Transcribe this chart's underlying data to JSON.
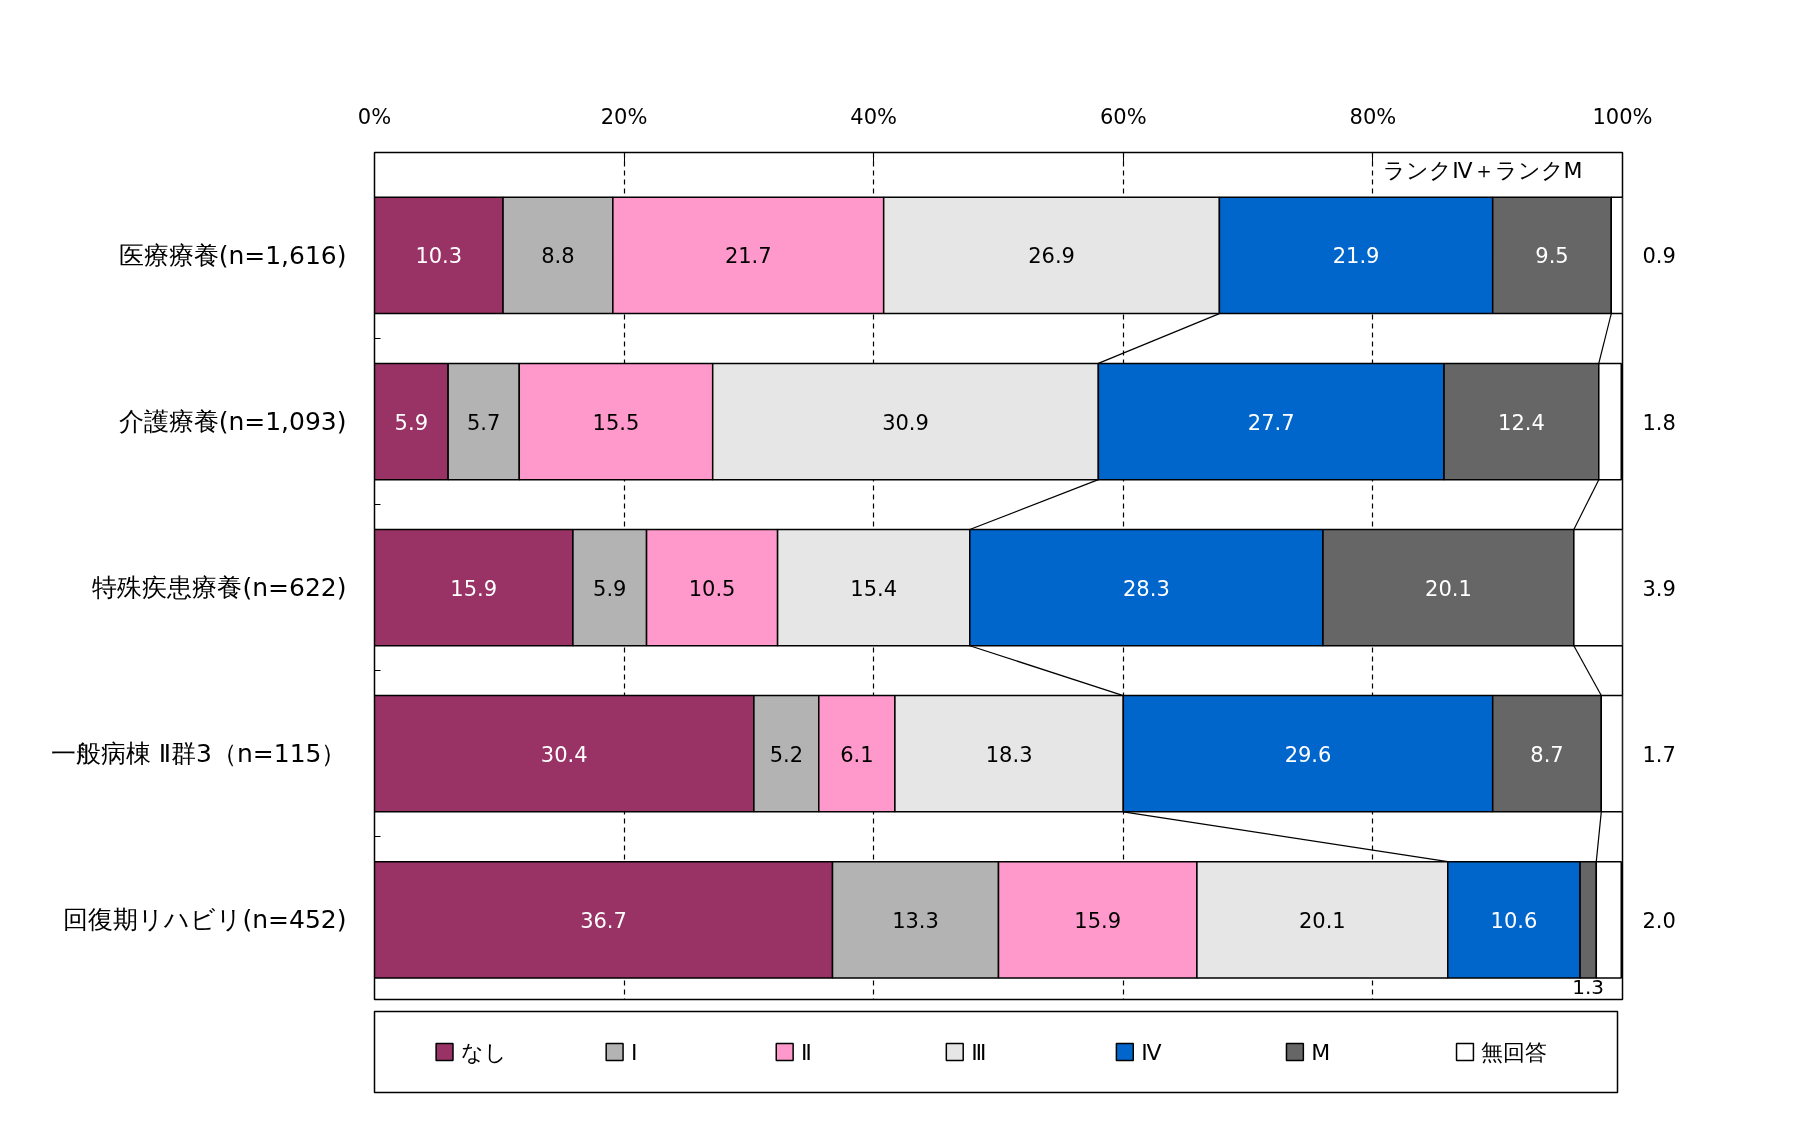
{
  "chart_data": {
    "type": "bar",
    "orientation": "horizontal",
    "stacked": true,
    "categories": [
      "医療療養(n=1,616)",
      "介護療養(n=1,093)",
      "特殊疾患療養(n=622)",
      "一般病棟 Ⅱ群3（n=115）",
      "回復期リハビリ(n=452)"
    ],
    "series": [
      {
        "name": "なし",
        "color": "#993366",
        "values": [
          10.3,
          5.9,
          15.9,
          30.4,
          36.7
        ],
        "value_labels": [
          "10.3",
          "5.9",
          "15.9",
          "30.4",
          "36.7"
        ]
      },
      {
        "name": "Ⅰ",
        "color": "#b3b3b3",
        "values": [
          8.8,
          5.7,
          5.9,
          5.2,
          13.3
        ],
        "value_labels": [
          "8.8",
          "5.7",
          "5.9",
          "5.2",
          "13.3"
        ]
      },
      {
        "name": "Ⅱ",
        "color": "#ff99cc",
        "values": [
          21.7,
          15.5,
          10.5,
          6.1,
          15.9
        ],
        "value_labels": [
          "21.7",
          "15.5",
          "10.5",
          "6.1",
          "15.9"
        ]
      },
      {
        "name": "Ⅲ",
        "color": "#e6e6e6",
        "values": [
          26.9,
          30.9,
          15.4,
          18.3,
          20.1
        ],
        "value_labels": [
          "26.9",
          "30.9",
          "15.4",
          "18.3",
          "20.1"
        ]
      },
      {
        "name": "Ⅳ",
        "color": "#0066cc",
        "values": [
          21.9,
          27.7,
          28.3,
          29.6,
          10.6
        ],
        "value_labels": [
          "21.9",
          "27.7",
          "28.3",
          "29.6",
          "10.6"
        ]
      },
      {
        "name": "M",
        "color": "#666666",
        "values": [
          9.5,
          12.4,
          20.1,
          8.7,
          1.3
        ],
        "value_labels": [
          "9.5",
          "12.4",
          "20.1",
          "8.7",
          "1.3"
        ]
      },
      {
        "name": "無回答",
        "color": "#ffffff",
        "values": [
          0.9,
          1.8,
          3.9,
          1.7,
          2.0
        ],
        "value_labels": [
          "0.9",
          "1.8",
          "3.9",
          "1.7",
          "2.0"
        ]
      }
    ],
    "xlim": [
      0,
      100
    ],
    "xticks": [
      {
        "value": 0,
        "label": "0%"
      },
      {
        "value": 20,
        "label": "20%"
      },
      {
        "value": 40,
        "label": "40%"
      },
      {
        "value": 60,
        "label": "60%"
      },
      {
        "value": 80,
        "label": "80%"
      },
      {
        "value": 100,
        "label": "100%"
      }
    ],
    "annotations": [
      "ランクⅣ＋ランクM"
    ],
    "grid": "x",
    "legend": "bottom"
  }
}
